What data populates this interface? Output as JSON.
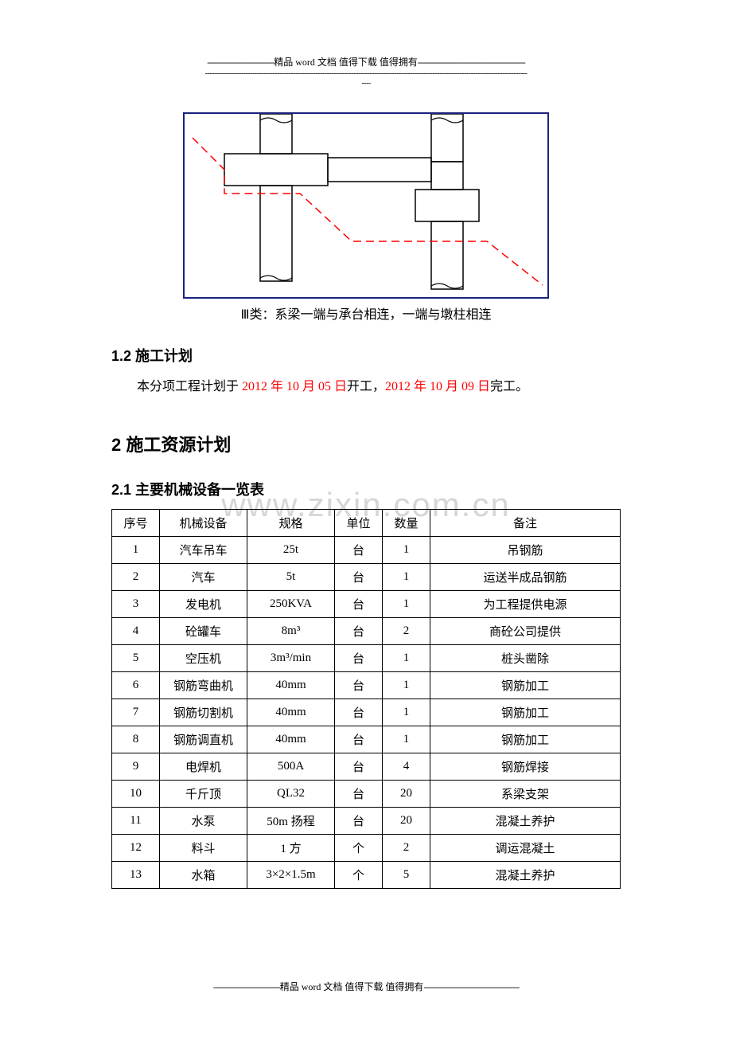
{
  "header": {
    "dashes_left": "----------------------------",
    "title": "精品 word 文档  值得下载  值得拥有",
    "dashes_right": "---------------------------------------------",
    "thin_dash_row": "-----------------------------------------------------------------------------------------------------------------------------------------------",
    "thin_dash_tail": "----"
  },
  "diagram": {
    "border_color": "#1a237e",
    "line_color": "#000000",
    "dashed_color": "#ff0000",
    "background": "#ffffff",
    "caption": "Ⅲ类：系梁一端与承台相连，一端与墩柱相连"
  },
  "section_1_2": {
    "heading": "1.2 施工计划"
  },
  "plan_text": {
    "prefix": "本分项工程计划于 ",
    "start_date": "2012 年 10 月 05 日",
    "mid": "开工，",
    "end_date": "2012 年 10 月 09 日",
    "suffix": "完工。"
  },
  "section_2": {
    "heading": "2 施工资源计划"
  },
  "section_2_1": {
    "heading": "2.1 主要机械设备一览表"
  },
  "table": {
    "columns": [
      "序号",
      "机械设备",
      "规格",
      "单位",
      "数量",
      "备注"
    ],
    "rows": [
      [
        "1",
        "汽车吊车",
        "25t",
        "台",
        "1",
        "吊钢筋"
      ],
      [
        "2",
        "汽车",
        "5t",
        "台",
        "1",
        "运送半成品钢筋"
      ],
      [
        "3",
        "发电机",
        "250KVA",
        "台",
        "1",
        "为工程提供电源"
      ],
      [
        "4",
        "砼罐车",
        "8m³",
        "台",
        "2",
        "商砼公司提供"
      ],
      [
        "5",
        "空压机",
        "3m³/min",
        "台",
        "1",
        "桩头凿除"
      ],
      [
        "6",
        "钢筋弯曲机",
        "40mm",
        "台",
        "1",
        "钢筋加工"
      ],
      [
        "7",
        "钢筋切割机",
        "40mm",
        "台",
        "1",
        "钢筋加工"
      ],
      [
        "8",
        "钢筋调直机",
        "40mm",
        "台",
        "1",
        "钢筋加工"
      ],
      [
        "9",
        "电焊机",
        "500A",
        "台",
        "4",
        "钢筋焊接"
      ],
      [
        "10",
        "千斤顶",
        "QL32",
        "台",
        "20",
        "系梁支架"
      ],
      [
        "11",
        "水泵",
        "50m 扬程",
        "台",
        "20",
        "混凝土养护"
      ],
      [
        "12",
        "料斗",
        "1 方",
        "个",
        "2",
        "调运混凝土"
      ],
      [
        "13",
        "水箱",
        "3×2×1.5m",
        "个",
        "5",
        "混凝土养护"
      ]
    ]
  },
  "watermark": "www.zixin.com.cn",
  "footer": {
    "dashes_left": "----------------------------",
    "title": "精品 word 文档  值得下载  值得拥有",
    "dashes_right": "----------------------------------------"
  }
}
